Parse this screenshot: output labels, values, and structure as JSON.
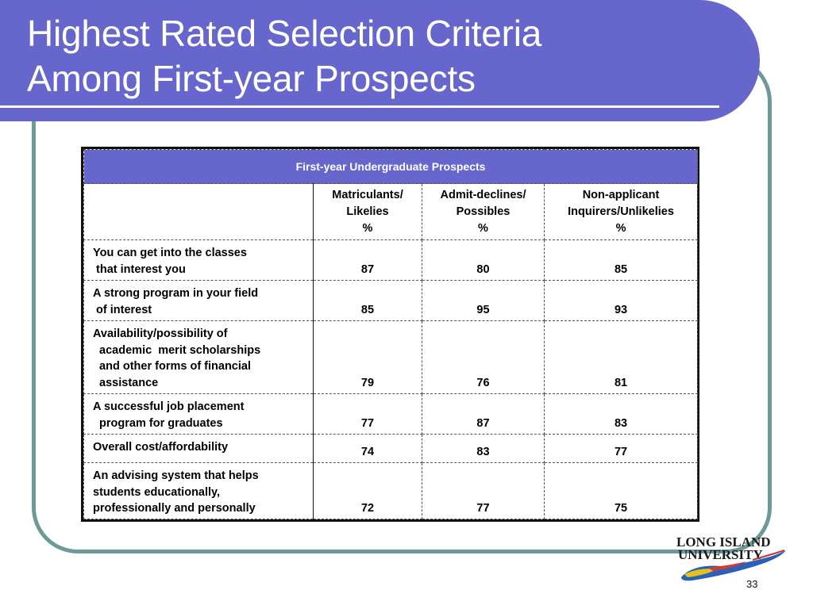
{
  "slide": {
    "title_line1": "Highest Rated Selection Criteria",
    "title_line2": "Among First-year Prospects",
    "page_number": "33",
    "colors": {
      "title_bar": "#6666cc",
      "frame": "#6d9a98",
      "table_header": "#6666cc"
    }
  },
  "table": {
    "group_header": "First-year Undergraduate Prospects",
    "columns": [
      {
        "line1": "Matriculants/",
        "line2": "Likelies",
        "line3": "%"
      },
      {
        "line1": "Admit-declines/",
        "line2": "Possibles",
        "line3": "%"
      },
      {
        "line1": "Non-applicant",
        "line2": "Inquirers/Unlikelies",
        "line3": "%"
      }
    ],
    "rows": [
      {
        "label": [
          "You can get into the classes",
          " that interest you"
        ],
        "values": [
          "87",
          "80",
          "85"
        ]
      },
      {
        "label": [
          "A strong program in your field",
          " of interest"
        ],
        "values": [
          "85",
          "95",
          "93"
        ]
      },
      {
        "label": [
          "Availability/possibility of",
          "  academic  merit scholarships",
          "  and other forms of financial",
          "  assistance"
        ],
        "values": [
          "79",
          "76",
          "81"
        ]
      },
      {
        "label": [
          "A successful job placement",
          "  program for graduates"
        ],
        "values": [
          "77",
          "87",
          "83"
        ]
      },
      {
        "label": [
          "Overall cost/affordability"
        ],
        "values": [
          "74",
          "83",
          "77"
        ]
      },
      {
        "label": [
          "An advising system that helps",
          "students educationally,",
          "professionally and personally"
        ],
        "values": [
          "72",
          "77",
          "75"
        ]
      }
    ]
  },
  "logo": {
    "line1": "LONG ISLAND",
    "line2": "UNIVERSITY"
  }
}
